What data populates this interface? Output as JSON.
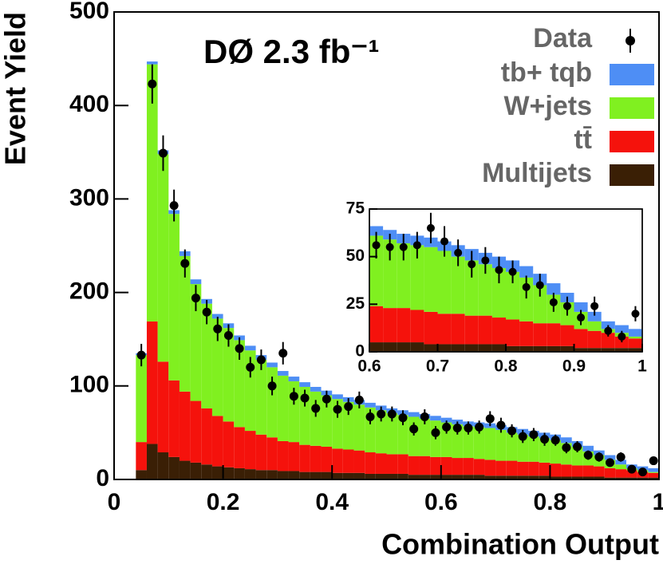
{
  "chart_data": {
    "type": "stacked-histogram",
    "annotation": "DØ  2.3 fb⁻¹",
    "xlabel": "Combination Output",
    "ylabel": "Event Yield",
    "xlim": [
      0,
      1
    ],
    "xticks": [
      0,
      0.2,
      0.4,
      0.6,
      0.8,
      1
    ],
    "ylim": [
      0,
      500
    ],
    "yticks": [
      0,
      100,
      200,
      300,
      400,
      500
    ],
    "bins": [
      0.04,
      0.06,
      0.08,
      0.1,
      0.12,
      0.14,
      0.16,
      0.18,
      0.2,
      0.22,
      0.24,
      0.26,
      0.28,
      0.3,
      0.32,
      0.34,
      0.36,
      0.38,
      0.4,
      0.42,
      0.44,
      0.46,
      0.48,
      0.5,
      0.52,
      0.54,
      0.56,
      0.58,
      0.6,
      0.62,
      0.64,
      0.66,
      0.68,
      0.7,
      0.72,
      0.74,
      0.76,
      0.78,
      0.8,
      0.82,
      0.84,
      0.86,
      0.88,
      0.9,
      0.92,
      0.94,
      0.96,
      0.98,
      1.0
    ],
    "series": [
      {
        "name": "tb+ tqb",
        "color": "#4e8ef5",
        "values": [
          2,
          3,
          4,
          4,
          5,
          5,
          5,
          5,
          5,
          5,
          5,
          5,
          5,
          5,
          5,
          5,
          5,
          5,
          5,
          5,
          5,
          5,
          5,
          5,
          5,
          5,
          5,
          5,
          5,
          5,
          5,
          5,
          5,
          5,
          6,
          6,
          6,
          6,
          6,
          6,
          6,
          6,
          5,
          5,
          5,
          4,
          4,
          4
        ]
      },
      {
        "name": "W+jets",
        "color": "#80f020",
        "values": [
          93,
          275,
          222,
          178,
          145,
          125,
          112,
          104,
          100,
          93,
          86,
          80,
          75,
          70,
          65,
          62,
          58,
          55,
          53,
          51,
          49,
          48,
          46,
          44,
          42,
          42,
          40,
          39,
          37,
          36,
          34,
          34,
          34,
          33,
          30,
          29,
          27,
          26,
          25,
          23,
          20,
          15,
          12,
          9,
          5,
          2,
          2,
          1
        ]
      },
      {
        "name": "tt̄",
        "color": "#f5120c",
        "values": [
          30,
          131,
          97,
          82,
          74,
          66,
          60,
          54,
          49,
          44,
          41,
          38,
          35,
          32,
          31,
          29,
          28,
          27,
          26,
          25,
          24,
          23,
          22,
          21,
          21,
          20,
          20,
          19,
          19,
          18,
          18,
          17,
          17,
          16,
          16,
          15,
          15,
          14,
          14,
          13,
          12,
          12,
          11,
          10,
          9,
          8,
          6,
          5
        ]
      },
      {
        "name": "Multijets",
        "color": "#3a1f05",
        "values": [
          10,
          38,
          29,
          24,
          20,
          18,
          16,
          14,
          13,
          12,
          11,
          10,
          10,
          9,
          9,
          8,
          8,
          8,
          7,
          7,
          7,
          6,
          6,
          6,
          6,
          5,
          5,
          5,
          5,
          5,
          5,
          5,
          4,
          4,
          4,
          4,
          4,
          4,
          3,
          3,
          3,
          3,
          3,
          2,
          2,
          2,
          2,
          2
        ]
      }
    ],
    "data": {
      "name": "Data",
      "color": "#000000",
      "values": [
        133,
        423,
        349,
        293,
        231,
        194,
        179,
        161,
        154,
        140,
        120,
        128,
        100,
        135,
        89,
        87,
        76,
        86,
        75,
        78,
        85,
        67,
        70,
        70,
        66,
        54,
        67,
        50,
        56,
        55,
        55,
        56,
        65,
        58,
        52,
        46,
        48,
        43,
        42,
        34,
        35,
        26,
        24,
        18,
        24,
        11,
        8,
        20
      ],
      "errors": [
        12,
        21,
        19,
        17,
        15,
        14,
        13,
        13,
        12,
        12,
        11,
        11,
        10,
        12,
        9,
        9,
        9,
        9,
        9,
        9,
        9,
        8,
        8,
        8,
        8,
        7,
        8,
        7,
        7,
        7,
        7,
        7,
        8,
        8,
        7,
        7,
        7,
        7,
        6,
        6,
        6,
        5,
        5,
        4,
        5,
        3,
        3,
        4
      ]
    },
    "inset": {
      "xlim": [
        0.6,
        1
      ],
      "xticks": [
        0.6,
        0.7,
        0.8,
        0.9,
        1
      ],
      "ylim": [
        0,
        75
      ],
      "yticks": [
        0,
        25,
        50,
        75
      ]
    }
  }
}
